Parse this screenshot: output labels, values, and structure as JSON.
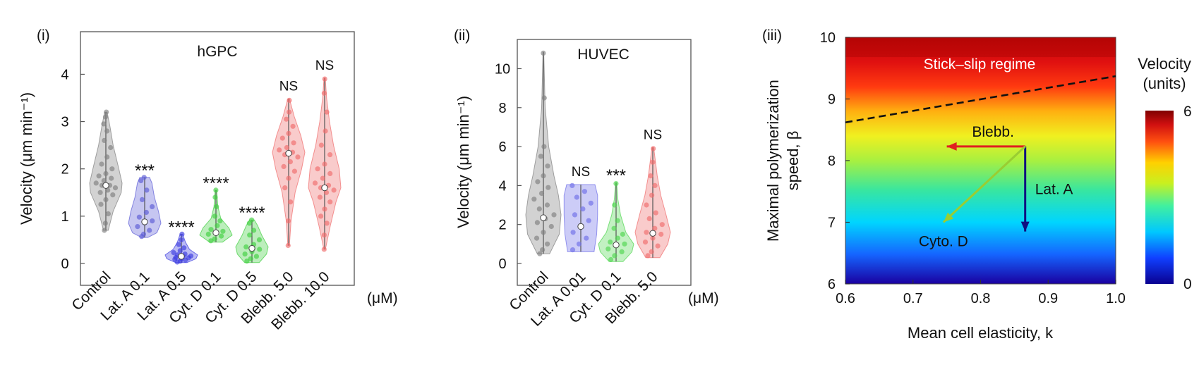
{
  "chart_data": [
    {
      "panel_label": "(i)",
      "type": "violin",
      "title": "hGPC",
      "ylabel": "Velocity (μm min⁻¹)",
      "unit_label": "(μM)",
      "ylim": [
        0,
        4.9
      ],
      "yticks": [
        "0",
        "1",
        "2",
        "3",
        "4"
      ],
      "categories": [
        "Control",
        "Lat. A 0.1",
        "Lat. A 0.5",
        "Cyt. D 0.1",
        "Cyt. D 0.5",
        "Blebb. 5.0",
        "Blebb. 10.0"
      ],
      "significance": [
        "",
        "***",
        "****",
        "****",
        "****",
        "NS",
        "NS"
      ],
      "series": [
        {
          "color": "#7f7f7f",
          "median": 1.65,
          "min": 0.7,
          "max": 3.2,
          "profile": [
            [
              0.7,
              0.15
            ],
            [
              1.1,
              0.45
            ],
            [
              1.5,
              0.95
            ],
            [
              1.7,
              1.0
            ],
            [
              2.0,
              0.8
            ],
            [
              2.5,
              0.45
            ],
            [
              2.9,
              0.25
            ],
            [
              3.2,
              0.08
            ]
          ],
          "points": [
            0.7,
            0.85,
            1.05,
            1.25,
            1.35,
            1.45,
            1.5,
            1.55,
            1.6,
            1.65,
            1.65,
            1.7,
            1.75,
            1.8,
            1.85,
            1.9,
            2.0,
            2.1,
            2.25,
            2.45,
            2.6,
            2.8,
            2.95,
            3.1,
            3.2
          ]
        },
        {
          "color": "#5b5bd6",
          "median": 0.88,
          "min": 0.55,
          "max": 1.82,
          "profile": [
            [
              0.55,
              0.2
            ],
            [
              0.65,
              0.75
            ],
            [
              0.85,
              1.0
            ],
            [
              1.1,
              0.85
            ],
            [
              1.4,
              0.6
            ],
            [
              1.7,
              0.45
            ],
            [
              1.82,
              0.3
            ]
          ],
          "points": [
            0.57,
            0.62,
            0.7,
            0.78,
            0.86,
            0.9,
            0.98,
            1.08,
            1.2,
            1.35,
            1.55,
            1.75,
            1.82
          ]
        },
        {
          "color": "#3a3ae0",
          "median": 0.15,
          "min": 0.02,
          "max": 0.62,
          "profile": [
            [
              0.02,
              0.35
            ],
            [
              0.1,
              0.9
            ],
            [
              0.18,
              1.0
            ],
            [
              0.3,
              0.5
            ],
            [
              0.45,
              0.25
            ],
            [
              0.62,
              0.08
            ]
          ],
          "points": [
            0.03,
            0.05,
            0.07,
            0.09,
            0.1,
            0.12,
            0.13,
            0.15,
            0.16,
            0.18,
            0.2,
            0.23,
            0.27,
            0.33,
            0.4,
            0.5,
            0.62
          ]
        },
        {
          "color": "#3fcf3f",
          "median": 0.65,
          "min": 0.45,
          "max": 1.55,
          "profile": [
            [
              0.45,
              0.4
            ],
            [
              0.6,
              1.0
            ],
            [
              0.75,
              0.8
            ],
            [
              0.95,
              0.3
            ],
            [
              1.2,
              0.12
            ],
            [
              1.55,
              0.05
            ]
          ],
          "points": [
            0.48,
            0.52,
            0.58,
            0.62,
            0.65,
            0.68,
            0.72,
            0.8,
            0.9,
            1.0,
            1.2,
            1.4,
            1.55
          ]
        },
        {
          "color": "#3fcf3f",
          "median": 0.32,
          "min": 0.02,
          "max": 0.92,
          "profile": [
            [
              0.02,
              0.45
            ],
            [
              0.2,
              0.9
            ],
            [
              0.35,
              1.0
            ],
            [
              0.6,
              0.6
            ],
            [
              0.8,
              0.35
            ],
            [
              0.92,
              0.15
            ]
          ],
          "points": [
            0.05,
            0.1,
            0.15,
            0.2,
            0.25,
            0.3,
            0.35,
            0.4,
            0.5,
            0.6,
            0.7,
            0.85,
            0.92
          ]
        },
        {
          "color": "#ef6b6b",
          "median": 2.33,
          "min": 0.38,
          "max": 3.48,
          "profile": [
            [
              0.38,
              0.05
            ],
            [
              0.9,
              0.15
            ],
            [
              1.5,
              0.4
            ],
            [
              2.0,
              0.8
            ],
            [
              2.35,
              1.0
            ],
            [
              2.7,
              0.75
            ],
            [
              3.1,
              0.35
            ],
            [
              3.48,
              0.05
            ]
          ],
          "points": [
            0.38,
            0.9,
            1.3,
            1.6,
            1.8,
            1.95,
            2.05,
            2.15,
            2.25,
            2.3,
            2.35,
            2.4,
            2.45,
            2.55,
            2.65,
            2.75,
            2.9,
            3.05,
            3.2,
            3.45
          ]
        },
        {
          "color": "#ef6b6b",
          "median": 1.6,
          "min": 0.3,
          "max": 3.92,
          "profile": [
            [
              0.3,
              0.05
            ],
            [
              0.8,
              0.35
            ],
            [
              1.3,
              0.7
            ],
            [
              1.6,
              1.0
            ],
            [
              2.0,
              0.9
            ],
            [
              2.5,
              0.55
            ],
            [
              3.0,
              0.3
            ],
            [
              3.5,
              0.12
            ],
            [
              3.92,
              0.04
            ]
          ],
          "points": [
            0.3,
            0.6,
            0.85,
            1.0,
            1.15,
            1.3,
            1.4,
            1.5,
            1.55,
            1.6,
            1.65,
            1.7,
            1.8,
            1.9,
            2.0,
            2.1,
            2.3,
            2.5,
            2.8,
            3.2,
            3.6,
            3.9
          ]
        }
      ]
    },
    {
      "panel_label": "(ii)",
      "type": "violin",
      "title": "HUVEC",
      "ylabel": "Velocity (μm min⁻¹)",
      "unit_label": "(μM)",
      "ylim": [
        0,
        11.5
      ],
      "yticks": [
        "0",
        "2",
        "4",
        "6",
        "8",
        "10"
      ],
      "categories": [
        "Control",
        "Lat. A 0.01",
        "Cyt. D 0.1",
        "Blebb. 5.0"
      ],
      "significance": [
        "",
        "NS",
        "***",
        "NS"
      ],
      "series": [
        {
          "color": "#7f7f7f",
          "median": 2.35,
          "min": 0.5,
          "max": 10.85,
          "profile": [
            [
              0.5,
              0.35
            ],
            [
              1.5,
              0.9
            ],
            [
              2.5,
              1.0
            ],
            [
              3.5,
              0.85
            ],
            [
              4.5,
              0.6
            ],
            [
              6.0,
              0.3
            ],
            [
              8.0,
              0.1
            ],
            [
              10.85,
              0.02
            ]
          ],
          "points": [
            0.5,
            0.7,
            1.0,
            1.3,
            1.6,
            1.9,
            2.1,
            2.3,
            2.5,
            2.8,
            3.0,
            3.3,
            3.6,
            3.9,
            4.2,
            4.5,
            5.0,
            5.5,
            6.0,
            8.5,
            10.8
          ]
        },
        {
          "color": "#6e6ee8",
          "median": 1.9,
          "min": 0.6,
          "max": 4.05,
          "profile": [
            [
              0.6,
              0.75
            ],
            [
              1.5,
              0.9
            ],
            [
              2.5,
              0.95
            ],
            [
              3.5,
              0.95
            ],
            [
              4.05,
              0.8
            ]
          ],
          "points": [
            0.7,
            1.0,
            1.3,
            1.6,
            1.9,
            2.2,
            2.5,
            2.8,
            3.1,
            3.4,
            3.7,
            4.0
          ]
        },
        {
          "color": "#4fd64f",
          "median": 0.95,
          "min": 0.1,
          "max": 4.15,
          "profile": [
            [
              0.1,
              0.4
            ],
            [
              0.6,
              0.9
            ],
            [
              1.0,
              1.0
            ],
            [
              1.6,
              0.55
            ],
            [
              2.5,
              0.25
            ],
            [
              3.3,
              0.1
            ],
            [
              4.15,
              0.03
            ]
          ],
          "points": [
            0.2,
            0.4,
            0.6,
            0.75,
            0.9,
            1.0,
            1.1,
            1.3,
            1.5,
            1.8,
            2.2,
            3.0,
            4.1
          ]
        },
        {
          "color": "#ef6b6b",
          "median": 1.55,
          "min": 0.3,
          "max": 5.95,
          "profile": [
            [
              0.3,
              0.4
            ],
            [
              1.0,
              0.85
            ],
            [
              1.6,
              1.0
            ],
            [
              2.5,
              0.75
            ],
            [
              3.5,
              0.45
            ],
            [
              4.5,
              0.25
            ],
            [
              5.95,
              0.05
            ]
          ],
          "points": [
            0.4,
            0.6,
            0.9,
            1.1,
            1.3,
            1.5,
            1.6,
            1.8,
            2.0,
            2.3,
            2.6,
            3.0,
            3.5,
            4.0,
            4.5,
            5.2,
            5.9
          ]
        }
      ]
    },
    {
      "panel_label": "(iii)",
      "type": "heatmap",
      "xlabel": "Mean cell elasticity, k",
      "ylabel_line1": "Maximal polymerization",
      "ylabel_line2": "speed, β",
      "xlim": [
        0.6,
        1.0
      ],
      "ylim": [
        6,
        10
      ],
      "xticks": [
        "0.6",
        "0.7",
        "0.8",
        "0.9",
        "1.0"
      ],
      "yticks": [
        "6",
        "7",
        "8",
        "9",
        "10"
      ],
      "colorbar": {
        "title_line1": "Velocity",
        "title_line2": "(units)",
        "min_label": "0",
        "max_label": "6",
        "min": 0,
        "max": 6
      },
      "regime_label": "Stick–slip regime",
      "boundary_line": {
        "x": [
          0.6,
          1.0
        ],
        "y": [
          8.62,
          9.37
        ],
        "style": "dashed"
      },
      "arrows": [
        {
          "label": "Blebb.",
          "color": "#e02020",
          "from": [
            0.866,
            8.23
          ],
          "to": [
            0.75,
            8.23
          ]
        },
        {
          "label": "Lat. A",
          "color": "#101080",
          "from": [
            0.866,
            8.23
          ],
          "to": [
            0.866,
            6.85
          ]
        },
        {
          "label": "Cyto. D",
          "color": "#9acd32",
          "from": [
            0.866,
            8.23
          ],
          "to": [
            0.745,
            7.0
          ]
        }
      ]
    }
  ]
}
